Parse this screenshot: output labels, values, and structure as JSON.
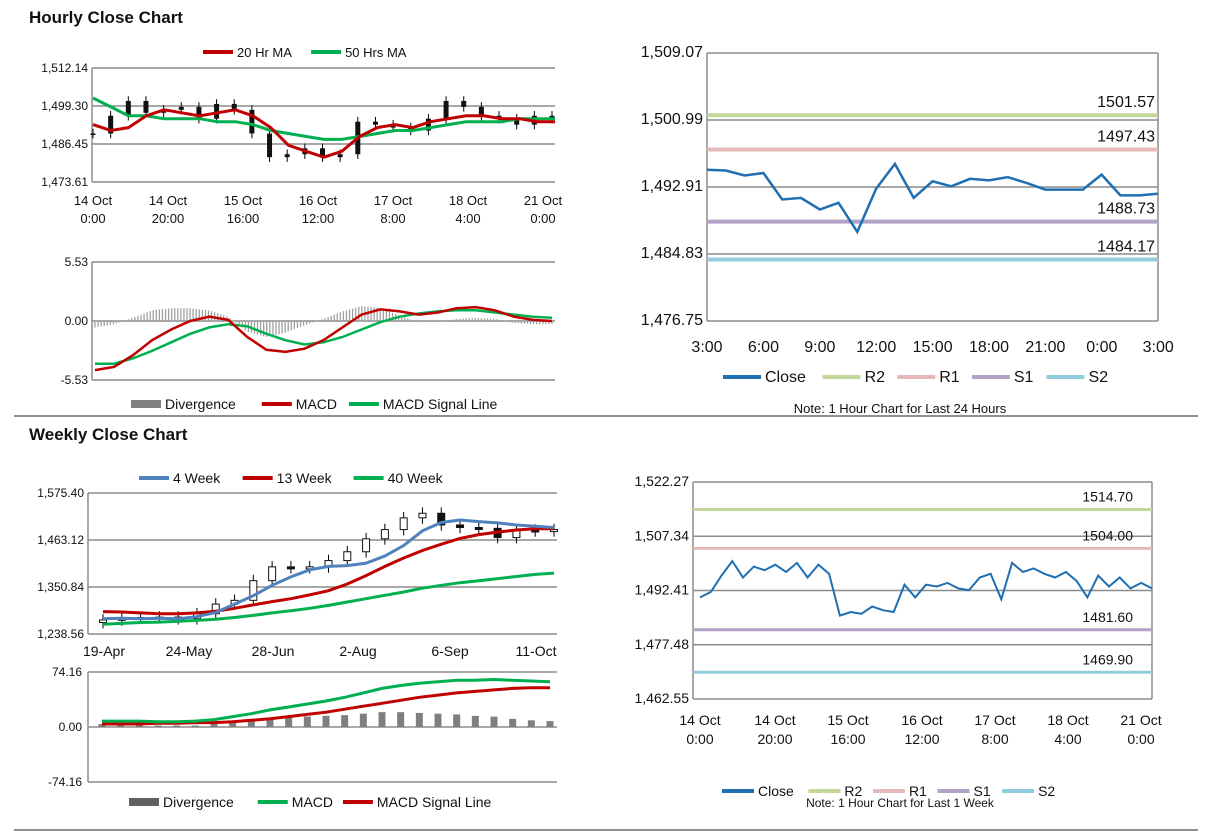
{
  "hourly": {
    "title": "Hourly Close Chart",
    "price": {
      "type": "line",
      "legend": [
        {
          "name": "20 Hr MA",
          "color": "#c00000"
        },
        {
          "name": "50 Hrs MA",
          "color": "#00b050"
        }
      ],
      "yticks": [
        "1,512.14",
        "1,499.30",
        "1,486.45",
        "1,473.61"
      ],
      "ylim": [
        1473.61,
        1512.14
      ],
      "xticks": [
        [
          "14 Oct",
          "0:00"
        ],
        [
          "14 Oct",
          "20:00"
        ],
        [
          "15 Oct",
          "16:00"
        ],
        [
          "16 Oct",
          "12:00"
        ],
        [
          "17 Oct",
          "8:00"
        ],
        [
          "18 Oct",
          "4:00"
        ],
        [
          "21 Oct",
          "0:00"
        ]
      ],
      "ma20": [
        1493,
        1491,
        1492,
        1496,
        1498,
        1497,
        1496,
        1497,
        1498,
        1496,
        1492,
        1486,
        1484,
        1482,
        1484,
        1489,
        1492,
        1493,
        1492,
        1494,
        1495,
        1496,
        1496,
        1495,
        1495,
        1494,
        1494
      ],
      "ma50": [
        1502,
        1499,
        1496,
        1496,
        1495,
        1495,
        1495,
        1494,
        1494,
        1493,
        1491,
        1490,
        1489,
        1488,
        1488,
        1489,
        1490,
        1491,
        1491,
        1492,
        1493,
        1494,
        1494,
        1494,
        1495,
        1495,
        1495
      ],
      "price": [
        1490,
        1496,
        1501,
        1497,
        1498,
        1499,
        1495,
        1500,
        1498,
        1490,
        1482,
        1483,
        1485,
        1482,
        1483,
        1494,
        1493,
        1492,
        1491,
        1495,
        1501,
        1499,
        1496,
        1495,
        1493,
        1496,
        1495
      ]
    },
    "macd": {
      "type": "line",
      "yticks": [
        "5.53",
        "0.00",
        "-5.53"
      ],
      "ylim": [
        -5.53,
        5.53
      ],
      "legend": [
        {
          "name": "Divergence",
          "color": "#808080"
        },
        {
          "name": "MACD",
          "color": "#c00000"
        },
        {
          "name": "MACD Signal Line",
          "color": "#00b050"
        }
      ],
      "macd": [
        -4.6,
        -4.3,
        -3.2,
        -1.8,
        -0.8,
        0.0,
        0.4,
        0.1,
        -1.5,
        -2.7,
        -2.9,
        -2.6,
        -1.8,
        -0.6,
        0.6,
        1.1,
        0.9,
        0.6,
        0.8,
        1.2,
        1.3,
        1.0,
        0.4,
        0.1,
        0.0
      ],
      "signal": [
        -4.0,
        -4.0,
        -3.5,
        -2.8,
        -2.0,
        -1.2,
        -0.6,
        -0.3,
        -0.5,
        -1.2,
        -1.8,
        -2.2,
        -2.0,
        -1.5,
        -0.8,
        -0.1,
        0.4,
        0.7,
        0.9,
        1.0,
        1.0,
        0.8,
        0.6,
        0.4,
        0.3
      ],
      "divergence": [
        -0.6,
        -0.3,
        0.3,
        1.0,
        1.2,
        1.2,
        1.0,
        0.4,
        -1.0,
        -1.5,
        -1.1,
        -0.4,
        0.2,
        0.9,
        1.4,
        1.2,
        0.5,
        -0.1,
        -0.1,
        0.2,
        0.3,
        0.2,
        -0.2,
        -0.3,
        -0.3
      ]
    },
    "levels": {
      "type": "line",
      "yticks": [
        "1,509.07",
        "1,500.99",
        "1,492.91",
        "1,484.83",
        "1,476.75"
      ],
      "ylim": [
        1476.75,
        1509.07
      ],
      "xticks": [
        "3:00",
        "6:00",
        "9:00",
        "12:00",
        "15:00",
        "18:00",
        "21:00",
        "0:00",
        "3:00"
      ],
      "close": [
        1495.0,
        1494.9,
        1494.3,
        1494.6,
        1491.4,
        1491.6,
        1490.2,
        1491.0,
        1487.5,
        1492.7,
        1495.7,
        1491.6,
        1493.6,
        1493.0,
        1493.9,
        1493.7,
        1494.1,
        1493.4,
        1492.6,
        1492.6,
        1492.6,
        1494.4,
        1491.9,
        1491.9,
        1492.1
      ],
      "lines": [
        {
          "name": "R2",
          "value": 1501.57,
          "label": "1501.57",
          "color": "#c3d69b"
        },
        {
          "name": "R1",
          "value": 1497.43,
          "label": "1497.43",
          "color": "#e6b9b8"
        },
        {
          "name": "S1",
          "value": 1488.73,
          "label": "1488.73",
          "color": "#b3a2c7"
        },
        {
          "name": "S2",
          "value": 1484.17,
          "label": "1484.17",
          "color": "#93cddd"
        }
      ],
      "legend": [
        {
          "name": "Close",
          "color": "#1f6fb2"
        },
        {
          "name": "R2",
          "color": "#c3d69b"
        },
        {
          "name": "R1",
          "color": "#e6b9b8"
        },
        {
          "name": "S1",
          "color": "#b3a2c7"
        },
        {
          "name": "S2",
          "color": "#93cddd"
        }
      ],
      "note": "Note: 1 Hour Chart for Last 24 Hours"
    }
  },
  "weekly": {
    "title": "Weekly Close Chart",
    "price": {
      "type": "line",
      "legend": [
        {
          "name": "4 Week",
          "color": "#4f81bd"
        },
        {
          "name": "13 Week",
          "color": "#c00000"
        },
        {
          "name": "40 Week",
          "color": "#00b050"
        }
      ],
      "yticks": [
        "1,575.40",
        "1,463.12",
        "1,350.84",
        "1,238.56"
      ],
      "ylim": [
        1238.56,
        1575.4
      ],
      "xticks": [
        "19-Apr",
        "24-May",
        "28-Jun",
        "2-Aug",
        "6-Sep",
        "11-Oct"
      ],
      "week4": [
        1275,
        1276,
        1275,
        1276,
        1275,
        1280,
        1290,
        1310,
        1330,
        1355,
        1375,
        1392,
        1400,
        1402,
        1408,
        1425,
        1450,
        1485,
        1505,
        1511,
        1507,
        1504,
        1499,
        1496,
        1493
      ],
      "week13": [
        1292,
        1291,
        1289,
        1287,
        1287,
        1289,
        1293,
        1300,
        1308,
        1316,
        1323,
        1332,
        1342,
        1358,
        1378,
        1400,
        1420,
        1438,
        1453,
        1467,
        1476,
        1482,
        1487,
        1490,
        1490
      ],
      "week40": [
        1262,
        1264,
        1266,
        1267,
        1269,
        1271,
        1274,
        1278,
        1283,
        1289,
        1294,
        1300,
        1307,
        1315,
        1323,
        1331,
        1339,
        1348,
        1355,
        1361,
        1366,
        1371,
        1376,
        1381,
        1384
      ],
      "close": [
        1272,
        1276,
        1278,
        1279,
        1275,
        1287,
        1310,
        1319,
        1366,
        1399,
        1397,
        1399,
        1414,
        1435,
        1466,
        1488,
        1516,
        1527,
        1499,
        1493,
        1491,
        1469,
        1487,
        1485,
        1488
      ]
    },
    "macd": {
      "type": "line",
      "yticks": [
        "74.16",
        "0.00",
        "-74.16"
      ],
      "ylim": [
        -74.16,
        74.16
      ],
      "legend": [
        {
          "name": "Divergence",
          "color": "#606060"
        },
        {
          "name": "MACD",
          "color": "#00b050"
        },
        {
          "name": "MACD Signal Line",
          "color": "#c00000"
        }
      ],
      "macd": [
        8,
        8,
        8,
        7,
        7,
        8,
        10,
        14,
        18,
        23,
        27,
        31,
        35,
        40,
        46,
        52,
        56,
        59,
        61,
        63,
        63,
        64,
        63,
        62,
        61
      ],
      "signal": [
        4,
        4,
        4,
        5,
        5,
        6,
        6,
        7,
        9,
        11,
        14,
        17,
        20,
        24,
        28,
        32,
        36,
        40,
        43,
        46,
        48,
        50,
        52,
        53,
        53
      ],
      "divergence": [
        4,
        4,
        4,
        2,
        2,
        2,
        4,
        7,
        9,
        12,
        13,
        14,
        15,
        16,
        18,
        20,
        20,
        19,
        18,
        17,
        15,
        14,
        11,
        9,
        8
      ]
    },
    "levels": {
      "type": "line",
      "yticks": [
        "1,522.27",
        "1,507.34",
        "1,492.41",
        "1,477.48",
        "1,462.55"
      ],
      "ylim": [
        1462.55,
        1522.27
      ],
      "xticks": [
        [
          "14 Oct",
          "0:00"
        ],
        [
          "14 Oct",
          "20:00"
        ],
        [
          "15 Oct",
          "16:00"
        ],
        [
          "16 Oct",
          "12:00"
        ],
        [
          "17 Oct",
          "8:00"
        ],
        [
          "18 Oct",
          "4:00"
        ],
        [
          "21 Oct",
          "0:00"
        ]
      ],
      "close": [
        1490.5,
        1492.0,
        1496.5,
        1500.5,
        1496.0,
        1499.0,
        1498.0,
        1499.5,
        1497.5,
        1500.0,
        1496.0,
        1499.5,
        1497.0,
        1485.5,
        1486.5,
        1486.0,
        1488.0,
        1487.0,
        1486.5,
        1494.0,
        1490.5,
        1494.0,
        1493.5,
        1494.5,
        1493.0,
        1492.5,
        1496.0,
        1497.0,
        1490.0,
        1500.0,
        1497.5,
        1498.5,
        1497.0,
        1496.0,
        1497.5,
        1495.0,
        1490.5,
        1496.5,
        1493.5,
        1496.0,
        1493.0,
        1494.5,
        1493.0
      ],
      "lines": [
        {
          "name": "R2",
          "value": 1514.7,
          "label": "1514.70",
          "color": "#c3d69b"
        },
        {
          "name": "R1",
          "value": 1504.0,
          "label": "1504.00",
          "color": "#e6b9b8"
        },
        {
          "name": "S1",
          "value": 1481.6,
          "label": "1481.60",
          "color": "#b3a2c7"
        },
        {
          "name": "S2",
          "value": 1469.9,
          "label": "1469.90",
          "color": "#93cddd"
        }
      ],
      "legend": [
        {
          "name": "Close",
          "color": "#1f6fb2"
        },
        {
          "name": "R2",
          "color": "#c3d69b"
        },
        {
          "name": "R1",
          "color": "#e6b9b8"
        },
        {
          "name": "S1",
          "color": "#b3a2c7"
        },
        {
          "name": "S2",
          "color": "#93cddd"
        }
      ],
      "note": "Note: 1 Hour Chart for Last 1 Week"
    }
  }
}
